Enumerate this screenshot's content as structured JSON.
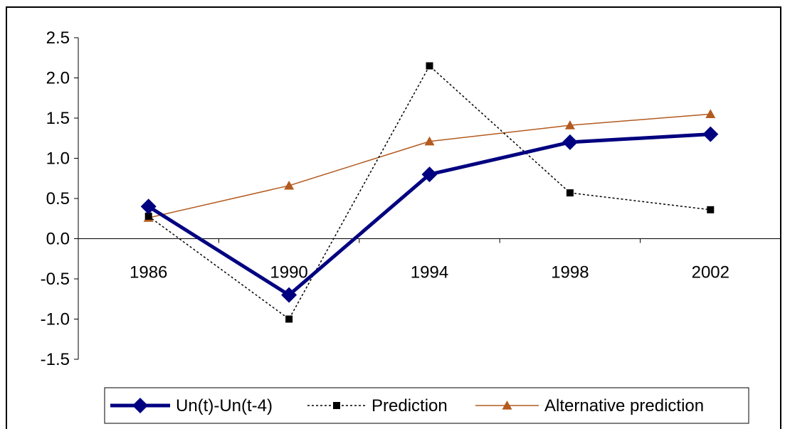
{
  "chart_data": {
    "type": "line",
    "title": "",
    "xlabel": "",
    "ylabel": "",
    "categories": [
      "1986",
      "1990",
      "1994",
      "1998",
      "2002"
    ],
    "ylim": [
      -1.5,
      2.5
    ],
    "yticks": [
      "2.5",
      "2.0",
      "1.5",
      "1.0",
      "0.5",
      "0.0",
      "-0.5",
      "-1.0",
      "-1.5"
    ],
    "ytick_values": [
      2.5,
      2.0,
      1.5,
      1.0,
      0.5,
      0.0,
      -0.5,
      -1.0,
      -1.5
    ],
    "grid": false,
    "legend_position": "bottom",
    "series": [
      {
        "name": "Un(t)-Un(t-4)",
        "values": [
          0.4,
          -0.7,
          0.8,
          1.2,
          1.3
        ],
        "color": "#000080",
        "marker": "diamond",
        "line_style": "solid-thick"
      },
      {
        "name": "Prediction",
        "values": [
          0.28,
          -1.0,
          2.15,
          0.57,
          0.36
        ],
        "color": "#000000",
        "marker": "square",
        "line_style": "dotted"
      },
      {
        "name": "Alternative prediction",
        "values": [
          0.26,
          0.66,
          1.21,
          1.41,
          1.55
        ],
        "color": "#B35A1F",
        "marker": "triangle",
        "line_style": "solid-thin"
      }
    ]
  }
}
